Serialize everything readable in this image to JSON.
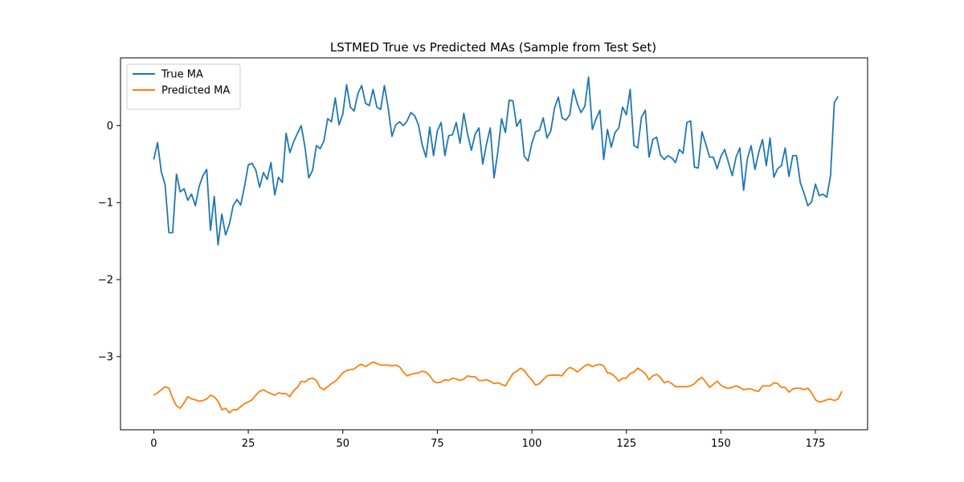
{
  "chart_data": {
    "type": "line",
    "title": "LSTMED True vs Predicted MAs (Sample from Test Set)",
    "xlabel": "",
    "ylabel": "",
    "xlim": [
      -8.8,
      188.8
    ],
    "ylim": [
      -3.95,
      0.88
    ],
    "x_ticks": [
      0,
      25,
      50,
      75,
      100,
      125,
      150,
      175
    ],
    "y_ticks": [
      0,
      -1,
      -2,
      -3
    ],
    "legend_position": "upper-left",
    "grid": false,
    "series": [
      {
        "name": "True MA",
        "color": "#1f77b4",
        "values": [
          -0.44,
          -0.22,
          -0.6,
          -0.77,
          -1.39,
          -1.39,
          -0.63,
          -0.86,
          -0.82,
          -0.97,
          -0.89,
          -1.04,
          -0.79,
          -0.65,
          -0.57,
          -1.36,
          -0.92,
          -1.55,
          -1.15,
          -1.42,
          -1.28,
          -1.04,
          -0.96,
          -1.03,
          -0.79,
          -0.51,
          -0.49,
          -0.58,
          -0.8,
          -0.61,
          -0.7,
          -0.48,
          -0.9,
          -0.67,
          -0.74,
          -0.1,
          -0.35,
          -0.21,
          -0.1,
          0.0,
          -0.28,
          -0.68,
          -0.58,
          -0.26,
          -0.3,
          -0.2,
          0.09,
          0.05,
          0.36,
          0.01,
          0.15,
          0.53,
          0.24,
          0.19,
          0.42,
          0.52,
          0.29,
          0.26,
          0.47,
          0.24,
          0.21,
          0.52,
          0.23,
          -0.14,
          0.01,
          0.05,
          0.0,
          0.06,
          0.17,
          0.13,
          0.01,
          -0.25,
          -0.41,
          -0.02,
          -0.39,
          -0.07,
          0.04,
          -0.39,
          -0.13,
          -0.12,
          0.04,
          -0.23,
          0.16,
          -0.11,
          -0.32,
          -0.11,
          -0.03,
          -0.5,
          -0.24,
          -0.03,
          -0.68,
          -0.34,
          0.09,
          -0.09,
          0.33,
          0.32,
          -0.01,
          0.08,
          -0.4,
          -0.46,
          -0.23,
          -0.08,
          -0.06,
          0.1,
          -0.16,
          -0.07,
          0.23,
          0.37,
          0.1,
          0.07,
          0.14,
          0.47,
          0.29,
          0.17,
          0.25,
          0.63,
          -0.05,
          0.09,
          0.2,
          -0.44,
          -0.05,
          -0.28,
          -0.09,
          -0.03,
          0.24,
          0.14,
          0.47,
          -0.26,
          -0.29,
          0.11,
          0.2,
          -0.41,
          -0.18,
          -0.15,
          -0.38,
          -0.44,
          -0.39,
          -0.42,
          -0.48,
          -0.31,
          -0.36,
          0.04,
          0.06,
          -0.54,
          -0.55,
          -0.08,
          -0.24,
          -0.41,
          -0.41,
          -0.56,
          -0.4,
          -0.31,
          -0.48,
          -0.65,
          -0.41,
          -0.29,
          -0.84,
          -0.43,
          -0.26,
          -0.57,
          -0.35,
          -0.18,
          -0.52,
          -0.16,
          -0.67,
          -0.56,
          -0.52,
          -0.29,
          -0.66,
          -0.39,
          -0.39,
          -0.74,
          -0.88,
          -1.04,
          -0.99,
          -0.76,
          -0.91,
          -0.89,
          -0.93,
          -0.65,
          0.3,
          0.38
        ]
      },
      {
        "name": "Predicted MA",
        "color": "#ff7f0e",
        "values": [
          -3.5,
          -3.47,
          -3.43,
          -3.39,
          -3.41,
          -3.54,
          -3.64,
          -3.67,
          -3.6,
          -3.52,
          -3.55,
          -3.56,
          -3.58,
          -3.57,
          -3.55,
          -3.5,
          -3.52,
          -3.58,
          -3.69,
          -3.67,
          -3.73,
          -3.69,
          -3.69,
          -3.65,
          -3.61,
          -3.59,
          -3.56,
          -3.5,
          -3.45,
          -3.43,
          -3.46,
          -3.48,
          -3.5,
          -3.47,
          -3.48,
          -3.48,
          -3.52,
          -3.44,
          -3.4,
          -3.32,
          -3.33,
          -3.29,
          -3.28,
          -3.31,
          -3.4,
          -3.43,
          -3.39,
          -3.35,
          -3.32,
          -3.27,
          -3.21,
          -3.18,
          -3.17,
          -3.16,
          -3.12,
          -3.1,
          -3.13,
          -3.1,
          -3.07,
          -3.09,
          -3.11,
          -3.11,
          -3.11,
          -3.12,
          -3.11,
          -3.13,
          -3.2,
          -3.25,
          -3.23,
          -3.22,
          -3.21,
          -3.19,
          -3.2,
          -3.25,
          -3.32,
          -3.34,
          -3.33,
          -3.3,
          -3.31,
          -3.28,
          -3.29,
          -3.31,
          -3.29,
          -3.25,
          -3.26,
          -3.26,
          -3.31,
          -3.31,
          -3.3,
          -3.32,
          -3.35,
          -3.34,
          -3.36,
          -3.38,
          -3.3,
          -3.22,
          -3.19,
          -3.15,
          -3.18,
          -3.25,
          -3.3,
          -3.37,
          -3.35,
          -3.3,
          -3.25,
          -3.24,
          -3.24,
          -3.24,
          -3.25,
          -3.18,
          -3.14,
          -3.16,
          -3.2,
          -3.16,
          -3.12,
          -3.1,
          -3.13,
          -3.11,
          -3.1,
          -3.12,
          -3.21,
          -3.22,
          -3.26,
          -3.32,
          -3.28,
          -3.28,
          -3.22,
          -3.2,
          -3.15,
          -3.18,
          -3.22,
          -3.3,
          -3.25,
          -3.23,
          -3.27,
          -3.34,
          -3.32,
          -3.35,
          -3.39,
          -3.39,
          -3.39,
          -3.39,
          -3.38,
          -3.35,
          -3.3,
          -3.27,
          -3.33,
          -3.4,
          -3.36,
          -3.32,
          -3.37,
          -3.4,
          -3.41,
          -3.4,
          -3.38,
          -3.4,
          -3.43,
          -3.42,
          -3.42,
          -3.44,
          -3.45,
          -3.38,
          -3.38,
          -3.38,
          -3.34,
          -3.35,
          -3.4,
          -3.4,
          -3.46,
          -3.42,
          -3.41,
          -3.41,
          -3.43,
          -3.41,
          -3.47,
          -3.56,
          -3.59,
          -3.58,
          -3.56,
          -3.55,
          -3.57,
          -3.55,
          -3.45
        ]
      }
    ]
  }
}
